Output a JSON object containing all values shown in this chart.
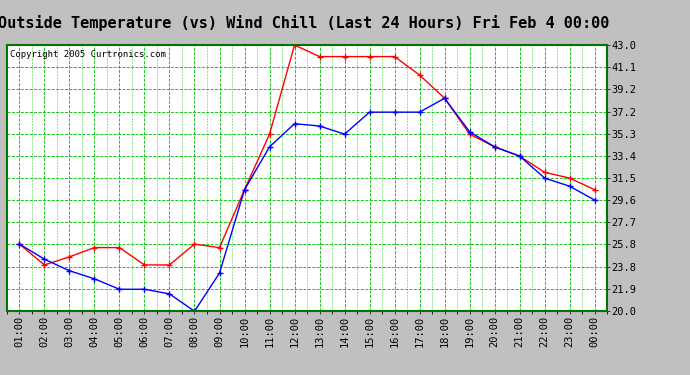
{
  "title": "Outside Temperature (vs) Wind Chill (Last 24 Hours) Fri Feb 4 00:00",
  "copyright": "Copyright 2005 Curtronics.com",
  "x_labels": [
    "01:00",
    "02:00",
    "03:00",
    "04:00",
    "05:00",
    "06:00",
    "07:00",
    "08:00",
    "09:00",
    "10:00",
    "11:00",
    "12:00",
    "13:00",
    "14:00",
    "15:00",
    "16:00",
    "17:00",
    "18:00",
    "19:00",
    "20:00",
    "21:00",
    "22:00",
    "23:00",
    "00:00"
  ],
  "outside_temp": [
    25.8,
    24.5,
    23.5,
    22.8,
    21.9,
    21.9,
    21.5,
    20.0,
    23.3,
    30.5,
    34.2,
    36.2,
    36.0,
    35.3,
    37.2,
    37.2,
    37.2,
    38.4,
    35.5,
    34.2,
    33.4,
    31.5,
    30.8,
    29.6
  ],
  "wind_chill": [
    25.8,
    24.0,
    24.7,
    25.5,
    25.5,
    24.0,
    24.0,
    25.8,
    25.5,
    30.5,
    35.3,
    43.0,
    42.0,
    42.0,
    42.0,
    42.0,
    40.4,
    38.4,
    35.3,
    34.2,
    33.4,
    32.0,
    31.5,
    30.5
  ],
  "temp_color": "#0000ff",
  "chill_color": "#ff0000",
  "bg_color": "#c0c0c0",
  "plot_bg": "#ffffff",
  "grid_color": "#00bb00",
  "border_color": "#007700",
  "y_min": 20.0,
  "y_max": 43.0,
  "y_ticks": [
    20.0,
    21.9,
    23.8,
    25.8,
    27.7,
    29.6,
    31.5,
    33.4,
    35.3,
    37.2,
    39.2,
    41.1,
    43.0
  ],
  "title_fontsize": 11,
  "tick_fontsize": 7.5,
  "copyright_fontsize": 6.5
}
